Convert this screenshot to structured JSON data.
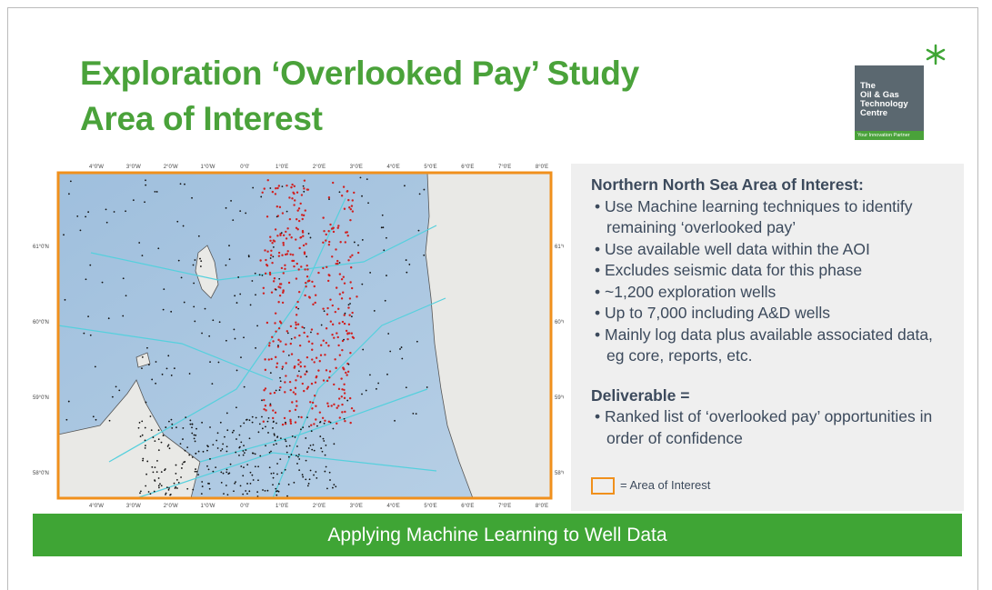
{
  "title": [
    "Exploration ‘Overlooked Pay’ Study",
    "Area of Interest"
  ],
  "logo": {
    "lines": [
      "The",
      "Oil & Gas",
      "Technology",
      "Centre"
    ],
    "tagline": "Your Innovation Partner"
  },
  "map": {
    "lon_labels": [
      "4°0'W",
      "3°0'W",
      "2°0'W",
      "1°0'W",
      "0°0'",
      "1°0'E",
      "2°0'E",
      "3°0'E",
      "4°0'E",
      "5°0'E",
      "6°0'E",
      "7°0'E",
      "8°0'E"
    ],
    "lat_labels": [
      "61°0'N",
      "60°0'N",
      "59°0'N",
      "58°0'N"
    ]
  },
  "panel": {
    "heading": "Northern North Sea Area of Interest:",
    "bullets": [
      "Use Machine learning techniques to identify remaining ‘overlooked pay’",
      "Use available well data within the AOI",
      "Excludes seismic data for this phase",
      "~1,200 exploration wells",
      "Up to 7,000 including A&D wells",
      "Mainly log data plus available associated data, eg core, reports, etc."
    ],
    "deliverable_heading": "Deliverable =",
    "deliverable_bullets": [
      "Ranked list of ‘overlooked pay’ opportunities in order of confidence"
    ],
    "legend": "= Area of Interest"
  },
  "banner": "Applying Machine Learning to Well Data"
}
